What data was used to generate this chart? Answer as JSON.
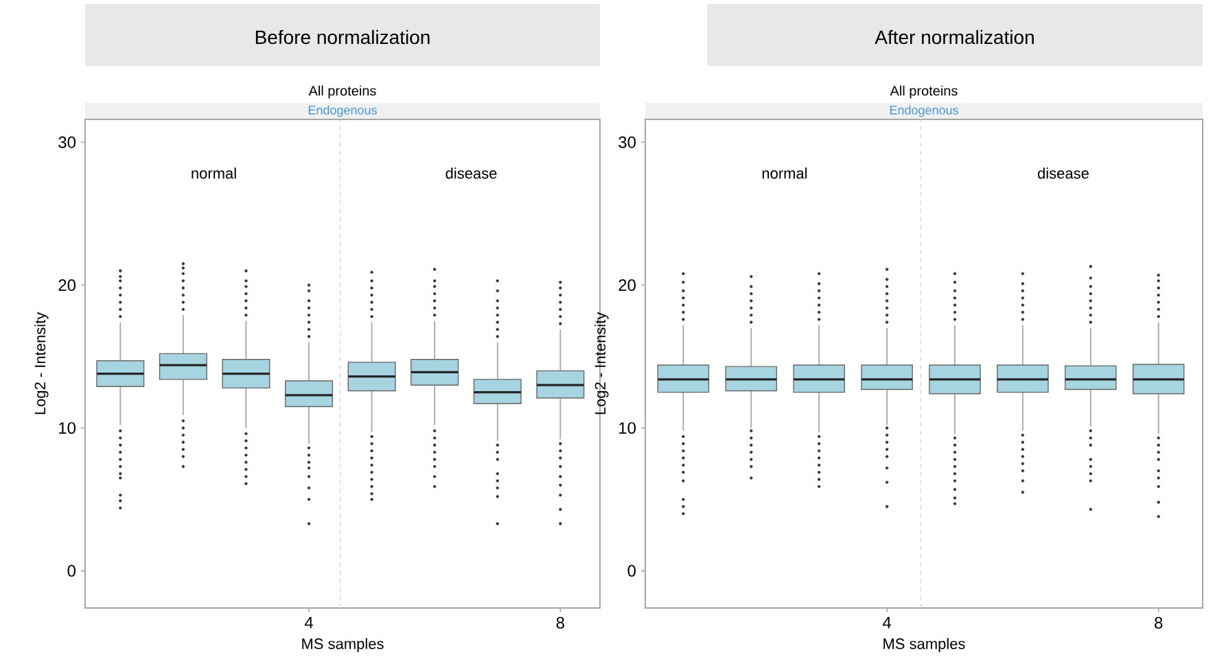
{
  "chart_data": [
    {
      "type": "box",
      "title": "Before normalization",
      "subtitle": "All proteins",
      "xlabel": "MS samples",
      "ylabel": "Log2 - Intensity",
      "annotations": [
        "Endogenous",
        "normal",
        "disease"
      ],
      "x": [
        1,
        2,
        3,
        4,
        5,
        6,
        7,
        8
      ],
      "color": "#a6d4e1",
      "marker": "circle",
      "xlim": [
        0.44,
        8.63
      ],
      "ylim": [
        -2.6,
        31.6
      ],
      "xticks": [
        4,
        8
      ],
      "yticks": [
        0,
        10,
        20,
        30
      ],
      "ref_lines": [
        {
          "axis": "x",
          "value": 4.5,
          "color": "#d0d0d0",
          "line_style": "dashed"
        }
      ],
      "boxes": [
        {
          "low": 10.2,
          "q1": 12.9,
          "median": 13.8,
          "q3": 14.7,
          "high": 17.4,
          "outliers": [
            17.8,
            18.3,
            18.8,
            19.3,
            19.8,
            20.3,
            20.6,
            21.0,
            9.8,
            9.3,
            8.8,
            8.3,
            7.8,
            7.3,
            6.8,
            6.5,
            5.3,
            4.9,
            4.4
          ]
        },
        {
          "low": 10.9,
          "q1": 13.4,
          "median": 14.4,
          "q3": 15.2,
          "high": 17.9,
          "outliers": [
            18.3,
            18.8,
            19.3,
            19.8,
            20.3,
            20.8,
            21.2,
            21.5,
            10.5,
            10.0,
            9.5,
            9.0,
            8.5,
            8.0,
            7.3
          ]
        },
        {
          "low": 10.0,
          "q1": 12.8,
          "median": 13.8,
          "q3": 14.8,
          "high": 17.5,
          "outliers": [
            17.9,
            18.4,
            18.9,
            19.4,
            19.9,
            20.3,
            21.0,
            9.6,
            9.1,
            8.6,
            8.1,
            7.6,
            7.1,
            6.6,
            6.1
          ]
        },
        {
          "low": 8.9,
          "q1": 11.5,
          "median": 12.3,
          "q3": 13.3,
          "high": 16.0,
          "outliers": [
            16.4,
            16.9,
            17.4,
            17.9,
            18.4,
            18.9,
            19.6,
            20.0,
            8.6,
            8.1,
            7.6,
            7.2,
            6.6,
            5.8,
            5.0,
            3.3
          ]
        },
        {
          "low": 9.7,
          "q1": 12.6,
          "median": 13.6,
          "q3": 14.6,
          "high": 17.4,
          "outliers": [
            17.8,
            18.3,
            18.8,
            19.3,
            19.8,
            20.3,
            20.9,
            9.4,
            8.9,
            8.4,
            7.9,
            7.4,
            6.9,
            6.4,
            5.9,
            5.4,
            5.0
          ]
        },
        {
          "low": 10.2,
          "q1": 13.0,
          "median": 13.9,
          "q3": 14.8,
          "high": 17.5,
          "outliers": [
            17.9,
            18.4,
            18.9,
            19.4,
            19.9,
            20.3,
            21.1,
            9.8,
            9.3,
            8.8,
            8.3,
            7.8,
            7.3,
            6.6,
            5.9
          ]
        },
        {
          "low": 9.1,
          "q1": 11.7,
          "median": 12.5,
          "q3": 13.4,
          "high": 16.0,
          "outliers": [
            16.4,
            16.9,
            17.4,
            17.9,
            18.4,
            18.9,
            19.6,
            20.3,
            8.8,
            8.3,
            7.8,
            6.8,
            6.3,
            5.8,
            5.2,
            3.3
          ]
        },
        {
          "low": 9.2,
          "q1": 12.1,
          "median": 13.0,
          "q3": 14.0,
          "high": 16.9,
          "outliers": [
            17.3,
            17.8,
            18.3,
            18.8,
            19.3,
            19.8,
            20.2,
            8.9,
            8.4,
            7.9,
            7.3,
            6.6,
            6.0,
            5.3,
            4.3,
            3.3
          ]
        }
      ]
    },
    {
      "type": "box",
      "title": "After normalization",
      "subtitle": "All proteins",
      "xlabel": "MS samples",
      "ylabel": "Log2 - Intensity",
      "annotations": [
        "Endogenous",
        "normal",
        "disease"
      ],
      "x": [
        1,
        2,
        3,
        4,
        5,
        6,
        7,
        8
      ],
      "color": "#a6d4e1",
      "marker": "circle",
      "xlim": [
        0.44,
        8.65
      ],
      "ylim": [
        -2.6,
        31.6
      ],
      "xticks": [
        4,
        8
      ],
      "yticks": [
        0,
        10,
        20,
        30
      ],
      "ref_lines": [
        {
          "axis": "x",
          "value": 4.5,
          "color": "#d0d0d0",
          "line_style": "dashed"
        }
      ],
      "boxes": [
        {
          "low": 9.8,
          "q1": 12.5,
          "median": 13.4,
          "q3": 14.4,
          "high": 17.2,
          "outliers": [
            17.6,
            18.1,
            18.6,
            19.1,
            19.6,
            20.2,
            20.8,
            9.4,
            8.9,
            8.4,
            7.9,
            7.4,
            6.9,
            6.3,
            5.0,
            4.5,
            4.0
          ]
        },
        {
          "low": 10.0,
          "q1": 12.6,
          "median": 13.4,
          "q3": 14.3,
          "high": 17.0,
          "outliers": [
            17.4,
            17.9,
            18.4,
            18.9,
            19.4,
            19.9,
            20.6,
            9.8,
            9.3,
            8.8,
            8.3,
            7.8,
            7.3,
            6.5
          ]
        },
        {
          "low": 9.7,
          "q1": 12.5,
          "median": 13.4,
          "q3": 14.4,
          "high": 17.2,
          "outliers": [
            17.6,
            18.1,
            18.6,
            19.1,
            19.6,
            20.1,
            20.8,
            9.4,
            8.9,
            8.4,
            7.9,
            7.4,
            6.9,
            6.4,
            5.9
          ]
        },
        {
          "low": 10.2,
          "q1": 12.7,
          "median": 13.4,
          "q3": 14.4,
          "high": 17.0,
          "outliers": [
            17.4,
            17.9,
            18.4,
            18.9,
            19.4,
            19.9,
            20.4,
            21.1,
            10.0,
            9.5,
            9.0,
            8.5,
            8.0,
            7.2,
            6.2,
            4.5
          ]
        },
        {
          "low": 9.6,
          "q1": 12.4,
          "median": 13.4,
          "q3": 14.4,
          "high": 17.2,
          "outliers": [
            17.6,
            18.1,
            18.6,
            19.1,
            19.6,
            20.2,
            20.8,
            9.3,
            8.8,
            8.3,
            7.8,
            7.3,
            6.8,
            6.3,
            5.7,
            5.1,
            4.7
          ]
        },
        {
          "low": 9.8,
          "q1": 12.5,
          "median": 13.4,
          "q3": 14.4,
          "high": 17.2,
          "outliers": [
            17.6,
            18.1,
            18.6,
            19.1,
            19.6,
            20.1,
            20.8,
            9.5,
            9.0,
            8.5,
            8.0,
            7.5,
            7.0,
            6.3,
            5.5
          ]
        },
        {
          "low": 10.1,
          "q1": 12.7,
          "median": 13.4,
          "q3": 14.35,
          "high": 17.0,
          "outliers": [
            17.4,
            17.9,
            18.4,
            18.9,
            19.4,
            19.9,
            20.5,
            21.3,
            9.8,
            9.3,
            8.8,
            7.8,
            7.3,
            6.8,
            6.3,
            4.3
          ]
        },
        {
          "low": 9.6,
          "q1": 12.4,
          "median": 13.4,
          "q3": 14.45,
          "high": 17.4,
          "outliers": [
            17.8,
            18.3,
            18.8,
            19.3,
            19.8,
            20.3,
            20.7,
            9.3,
            8.8,
            8.3,
            7.8,
            7.0,
            6.5,
            5.9,
            4.8,
            3.8
          ]
        }
      ]
    }
  ]
}
